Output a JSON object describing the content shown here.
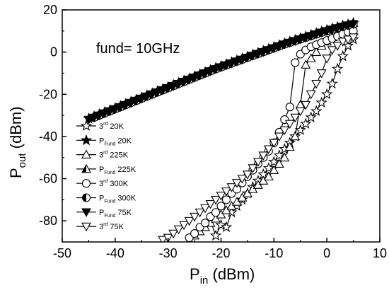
{
  "chart_data": {
    "type": "line",
    "annotation": "fund= 10GHz",
    "xlabel": {
      "main": "P",
      "sub": "in",
      "rest": " (dBm)"
    },
    "ylabel": {
      "main": "P",
      "sub": "out",
      "rest": " (dBm)"
    },
    "xlim": [
      -50,
      10
    ],
    "ylim": [
      -90,
      20
    ],
    "xticks": [
      -50,
      -40,
      -30,
      -20,
      -10,
      0,
      10
    ],
    "yticks": [
      -80,
      -60,
      -40,
      -20,
      0,
      20
    ],
    "xtick_labels": [
      "-50",
      "-40",
      "-30",
      "-20",
      "-10",
      "0",
      "10"
    ],
    "ytick_labels": [
      "-80",
      "-60",
      "-40",
      "-20",
      "0",
      "20"
    ],
    "series": [
      {
        "name": "3rd 20K",
        "legend": {
          "pre": "3",
          "sup": "rd",
          "post": " 20K"
        },
        "marker": "star",
        "fill": "none",
        "x": [
          -22,
          -21,
          -20,
          -19,
          -18,
          -17,
          -16,
          -15,
          -14,
          -13,
          -12,
          -11,
          -10,
          -9,
          -8,
          -7,
          -6,
          -5,
          -4,
          -3,
          -2,
          -1,
          0,
          1,
          2,
          3,
          4,
          5
        ],
        "y": [
          -80,
          -87,
          -82,
          -83,
          -76,
          -73,
          -70,
          -67,
          -64,
          -61,
          -58,
          -55,
          -52,
          -49,
          -46,
          -43,
          -40,
          -37,
          -34,
          -31,
          -28,
          -24,
          -20,
          -15,
          -8,
          -2,
          3,
          6
        ]
      },
      {
        "name": "PFund 20K",
        "legend": {
          "pre": "P",
          "sub": "Fund",
          "post": " 20K"
        },
        "marker": "star",
        "fill": "#000",
        "x": [
          -45,
          -44,
          -43,
          -42,
          -41,
          -40,
          -39,
          -38,
          -37,
          -36,
          -35,
          -34,
          -33,
          -32,
          -31,
          -30,
          -29,
          -28,
          -27,
          -26,
          -25,
          -24,
          -23,
          -22,
          -21,
          -20,
          -19,
          -18,
          -17,
          -16,
          -15,
          -14,
          -13,
          -12,
          -11,
          -10,
          -9,
          -8,
          -7,
          -6,
          -5,
          -4,
          -3,
          -2,
          -1,
          0,
          1,
          2,
          3,
          4,
          5
        ],
        "y": [
          -31.5,
          -30.5,
          -29.5,
          -28.5,
          -27.5,
          -26.5,
          -25.5,
          -24.5,
          -23.5,
          -22.5,
          -21.5,
          -20.5,
          -19.5,
          -18.5,
          -17.5,
          -16.5,
          -15.5,
          -14.5,
          -13.5,
          -12.5,
          -11.5,
          -10.5,
          -9.5,
          -8.5,
          -7.5,
          -6.6,
          -5.7,
          -4.8,
          -3.9,
          -3,
          -2.1,
          -1.2,
          -0.3,
          0.6,
          1.5,
          2.4,
          3.3,
          4.2,
          5,
          5.8,
          6.6,
          7.4,
          8.2,
          9,
          9.8,
          10.5,
          11.2,
          11.9,
          12.6,
          13.2,
          13.8
        ]
      },
      {
        "name": "3rd 225K",
        "legend": {
          "pre": "3",
          "sup": "rd",
          "post": " 225K"
        },
        "marker": "triangle-up",
        "fill": "none",
        "x": [
          -25,
          -24,
          -23,
          -22,
          -21,
          -20,
          -19,
          -18,
          -17,
          -16,
          -15,
          -14,
          -13,
          -12,
          -11,
          -10,
          -9,
          -8,
          -7,
          -6,
          -5,
          -4,
          -3,
          -2,
          -1,
          0,
          1,
          2,
          3,
          4,
          5
        ],
        "y": [
          -87,
          -85,
          -83,
          -81,
          -79,
          -77,
          -75,
          -73,
          -71,
          -69,
          -67,
          -65,
          -63,
          -61,
          -59,
          -56,
          -53,
          -50,
          -45,
          -40,
          -25,
          -6,
          -3,
          0,
          3,
          5,
          7,
          8,
          9,
          9.5,
          10
        ]
      },
      {
        "name": "PFund 225K",
        "legend": {
          "pre": "P",
          "sub": "Fund",
          "post": " 225K"
        },
        "marker": "triangle-up-half",
        "fill": "#000",
        "x": [
          -44,
          -43,
          -42,
          -41,
          -40,
          -39,
          -38,
          -37,
          -36,
          -35,
          -34,
          -33,
          -32,
          -31,
          -30,
          -29,
          -28,
          -27,
          -26,
          -25,
          -24,
          -23,
          -22,
          -21,
          -20,
          -19,
          -18,
          -17,
          -16,
          -15,
          -14,
          -13,
          -12,
          -11,
          -10,
          -9,
          -8,
          -7,
          -6,
          -5,
          -4,
          -3,
          -2,
          -1,
          0,
          1,
          2,
          3,
          4,
          5
        ],
        "y": [
          -30.5,
          -29.5,
          -28.5,
          -27.5,
          -26.5,
          -25.5,
          -24.5,
          -23.5,
          -22.5,
          -21.5,
          -20.5,
          -19.5,
          -18.5,
          -17.5,
          -16.5,
          -15.5,
          -14.5,
          -13.5,
          -12.5,
          -11.5,
          -10.5,
          -9.5,
          -8.5,
          -7.5,
          -6.6,
          -5.7,
          -4.8,
          -3.9,
          -3,
          -2.1,
          -1.2,
          -0.3,
          0.6,
          1.5,
          2.4,
          3.3,
          4.2,
          5,
          5.8,
          6.6,
          7.4,
          8.2,
          9,
          9.8,
          10.5,
          11.2,
          11.9,
          12.6,
          13.2,
          13.8
        ]
      },
      {
        "name": "3rd 300K",
        "legend": {
          "pre": "3",
          "sup": "rd",
          "post": " 300K"
        },
        "marker": "circle",
        "fill": "none",
        "x": [
          -26,
          -25,
          -24,
          -23,
          -22,
          -21,
          -20,
          -19,
          -18,
          -17,
          -16,
          -15,
          -14,
          -13,
          -12,
          -11,
          -10,
          -9,
          -8,
          -7,
          -6,
          -5,
          -4,
          -3,
          -2,
          -1,
          0,
          1,
          2,
          3,
          4,
          5
        ],
        "y": [
          -88,
          -86,
          -83,
          -81,
          -78,
          -76,
          -73,
          -70,
          -67,
          -65,
          -62,
          -59,
          -56,
          -53,
          -50,
          -47,
          -43,
          -38,
          -32,
          -26,
          -5,
          -1,
          1,
          2.5,
          3.5,
          4.5,
          5.5,
          6.5,
          7.5,
          8.5,
          9.5,
          10
        ]
      },
      {
        "name": "PFund 300K",
        "legend": {
          "pre": "P",
          "sub": "Fund",
          "post": " 300K"
        },
        "marker": "circle-half",
        "fill": "#000",
        "x": [
          -44,
          -43,
          -42,
          -41,
          -40,
          -39,
          -38,
          -37,
          -36,
          -35,
          -34,
          -33,
          -32,
          -31,
          -30,
          -29,
          -28,
          -27,
          -26,
          -25,
          -24,
          -23,
          -22,
          -21,
          -20,
          -19,
          -18,
          -17,
          -16,
          -15,
          -14,
          -13,
          -12,
          -11,
          -10,
          -9,
          -8,
          -7,
          -6,
          -5,
          -4,
          -3,
          -2,
          -1,
          0,
          1,
          2,
          3,
          4,
          5
        ],
        "y": [
          -31,
          -30,
          -29,
          -28,
          -27,
          -26,
          -25,
          -24,
          -23,
          -22,
          -21,
          -20,
          -19,
          -18,
          -17,
          -16,
          -15,
          -14,
          -13,
          -12,
          -11,
          -10,
          -9,
          -8,
          -7.1,
          -6.2,
          -5.3,
          -4.4,
          -3.5,
          -2.6,
          -1.7,
          -0.8,
          0.1,
          1,
          1.9,
          2.8,
          3.7,
          4.5,
          5.3,
          6.1,
          6.9,
          7.7,
          8.5,
          9.3,
          10,
          10.7,
          11.4,
          12.1,
          12.7,
          13.3
        ]
      },
      {
        "name": "PFund 75K",
        "legend": {
          "pre": "P",
          "sub": "Fund",
          "post": " 75K"
        },
        "marker": "triangle-down",
        "fill": "#000",
        "x": [
          -45,
          -44,
          -43,
          -42,
          -41,
          -40,
          -39,
          -38,
          -37,
          -36,
          -35,
          -34,
          -33,
          -32,
          -31,
          -30,
          -29,
          -28,
          -27,
          -26,
          -25,
          -24,
          -23,
          -22,
          -21,
          -20,
          -19,
          -18,
          -17,
          -16,
          -15,
          -14,
          -13,
          -12,
          -11,
          -10,
          -9,
          -8,
          -7,
          -6,
          -5,
          -4,
          -3,
          -2,
          -1,
          0,
          1,
          2,
          3,
          4,
          5
        ],
        "y": [
          -32,
          -31,
          -30,
          -29,
          -28,
          -27,
          -26,
          -25,
          -24,
          -23,
          -22,
          -21,
          -20,
          -19,
          -18,
          -17,
          -16,
          -15,
          -14,
          -13,
          -12,
          -11,
          -10,
          -9,
          -8,
          -7.1,
          -6.2,
          -5.3,
          -4.4,
          -3.5,
          -2.6,
          -1.7,
          -0.8,
          0.1,
          1,
          1.9,
          2.8,
          3.7,
          4.5,
          5.3,
          6.1,
          6.9,
          7.7,
          8.5,
          9.3,
          10,
          10.7,
          11.4,
          12.1,
          12.7,
          13.3
        ]
      },
      {
        "name": "3rd 75K",
        "legend": {
          "pre": "3",
          "sup": "rd",
          "post": " 75K"
        },
        "marker": "triangle-down",
        "fill": "none",
        "x": [
          -31,
          -30,
          -29,
          -28,
          -27,
          -26,
          -25,
          -24,
          -23,
          -22,
          -21,
          -20,
          -19,
          -18,
          -17,
          -16,
          -15,
          -14,
          -13,
          -12,
          -11,
          -10,
          -9,
          -8,
          -7,
          -6,
          -5,
          -4,
          -3,
          -2,
          -1,
          0,
          1,
          2,
          3,
          4,
          5
        ],
        "y": [
          -89,
          -88,
          -86,
          -84,
          -82,
          -80,
          -78,
          -76,
          -74,
          -72,
          -70,
          -68,
          -66,
          -64,
          -62,
          -60,
          -58,
          -55,
          -52,
          -49,
          -46,
          -43,
          -40,
          -37,
          -34,
          -31,
          -28,
          -25,
          -20,
          -15,
          -10,
          -3,
          1,
          3,
          5,
          6,
          7
        ]
      }
    ]
  }
}
